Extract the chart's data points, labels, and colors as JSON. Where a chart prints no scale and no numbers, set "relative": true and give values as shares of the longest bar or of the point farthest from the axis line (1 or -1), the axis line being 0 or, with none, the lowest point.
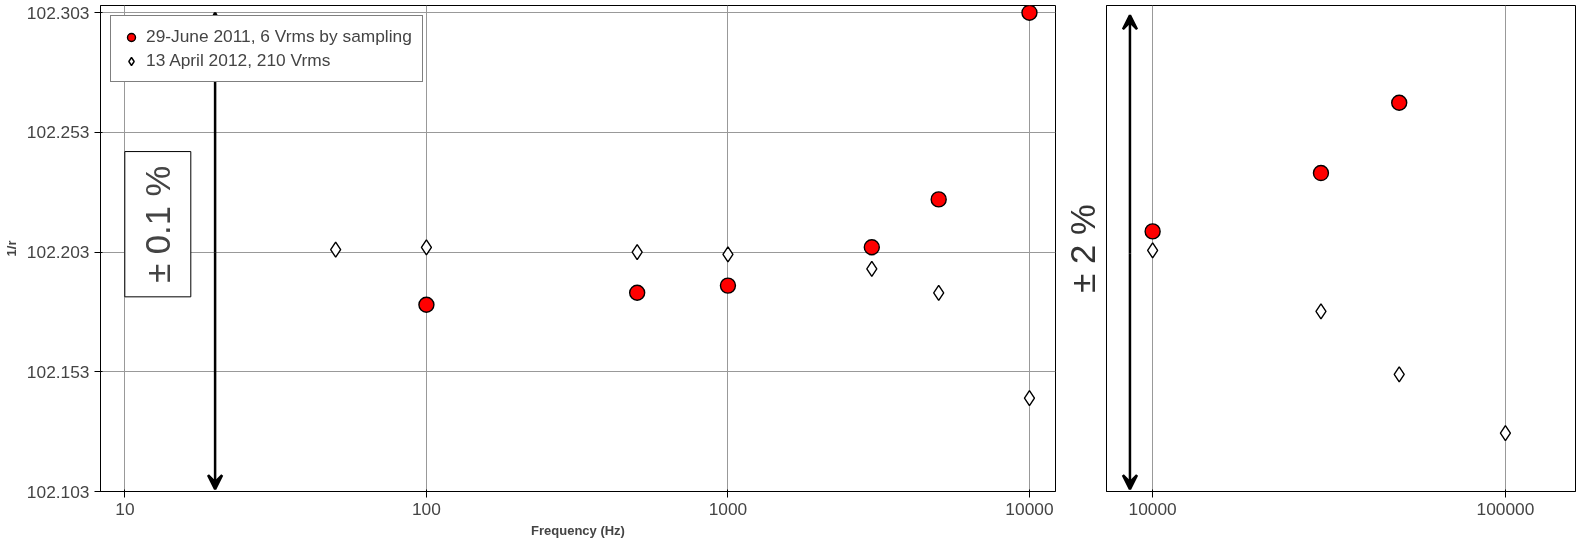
{
  "chart_data": [
    {
      "type": "scatter",
      "xlabel": "Frequency (Hz)",
      "ylabel": "1/r",
      "log": "x",
      "xlim": [
        8.3,
        12200
      ],
      "ylim": [
        102.103,
        102.306
      ],
      "xticks": [
        10,
        100,
        1000,
        10000
      ],
      "yticks": [
        102.103,
        102.153,
        102.203,
        102.253,
        102.303
      ],
      "grid": true,
      "legend": "top left",
      "annotations": [
        "± 0.1 %"
      ],
      "series": [
        {
          "name": "29-June 2011, 6 Vrms by sampling",
          "color": "#ff0000",
          "marker": "circle",
          "x": [
            100,
            500,
            1000,
            3000,
            5000,
            10000
          ],
          "values": [
            102.181,
            102.186,
            102.189,
            102.205,
            102.225,
            102.303
          ]
        },
        {
          "name": "13 April 2012, 210 Vrms",
          "color": "#ffffff",
          "marker": "diamond",
          "x": [
            50,
            100,
            500,
            1000,
            3000,
            5000,
            10000
          ],
          "values": [
            102.204,
            102.205,
            102.203,
            102.202,
            102.196,
            102.186,
            102.142
          ]
        }
      ]
    },
    {
      "type": "scatter",
      "relative": true,
      "log": "x",
      "xlim": [
        7400,
        158000
      ],
      "xticks": [
        10000,
        100000
      ],
      "grid": "x",
      "tick_labels": "x",
      "annotations": [
        "± 2 %"
      ],
      "series": [
        {
          "color": "#ff0000",
          "marker": "circle",
          "x": [
            10000,
            30000,
            50000
          ],
          "values": [
            0.669,
            0.819,
            1
          ]
        },
        {
          "color": "#ffffff",
          "marker": "diamond",
          "x": [
            10000,
            30000,
            50000,
            100000
          ],
          "values": [
            0.62,
            0.463,
            0.301,
            0.15
          ]
        }
      ]
    }
  ]
}
